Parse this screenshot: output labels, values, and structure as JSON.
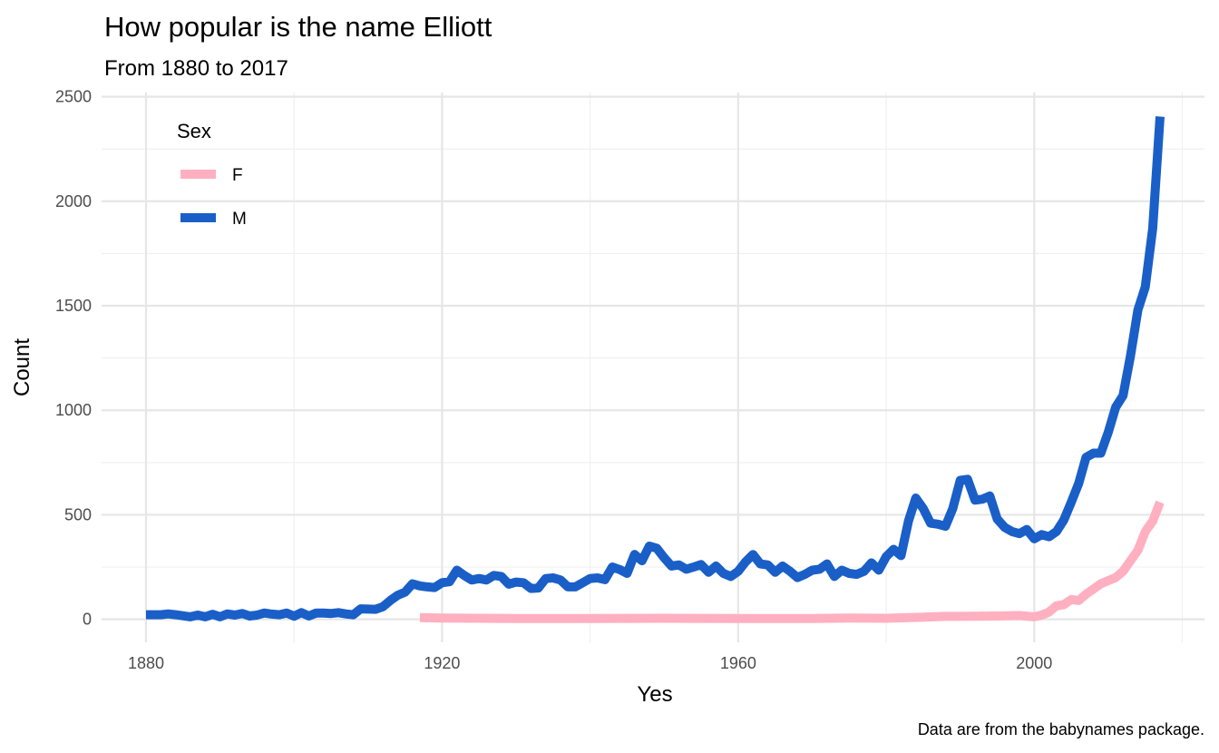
{
  "chart_data": {
    "type": "line",
    "title": "How popular is the name Elliott",
    "subtitle": "From 1880 to 2017",
    "xlabel": "Yes",
    "ylabel": "Count",
    "caption": "Data are from the babynames package.",
    "xlim": [
      1874,
      2023
    ],
    "ylim": [
      -110,
      2520
    ],
    "x_ticks": [
      1880,
      1920,
      1960,
      2000
    ],
    "y_ticks": [
      0,
      500,
      1000,
      1500,
      2000,
      2500
    ],
    "grid": true,
    "legend": {
      "title": "Sex",
      "position": "top-left"
    },
    "series": [
      {
        "name": "F",
        "color": "#ffb0c0",
        "points": [
          [
            1917,
            8
          ],
          [
            1920,
            6
          ],
          [
            1930,
            4
          ],
          [
            1940,
            4
          ],
          [
            1950,
            5
          ],
          [
            1960,
            4
          ],
          [
            1970,
            4
          ],
          [
            1975,
            6
          ],
          [
            1980,
            5
          ],
          [
            1983,
            8
          ],
          [
            1985,
            10
          ],
          [
            1988,
            14
          ],
          [
            1990,
            14
          ],
          [
            1995,
            16
          ],
          [
            1998,
            18
          ],
          [
            2000,
            12
          ],
          [
            2001,
            20
          ],
          [
            2002,
            35
          ],
          [
            2003,
            65
          ],
          [
            2004,
            70
          ],
          [
            2005,
            95
          ],
          [
            2006,
            90
          ],
          [
            2007,
            120
          ],
          [
            2008,
            145
          ],
          [
            2009,
            170
          ],
          [
            2010,
            185
          ],
          [
            2011,
            200
          ],
          [
            2012,
            230
          ],
          [
            2013,
            280
          ],
          [
            2014,
            330
          ],
          [
            2015,
            420
          ],
          [
            2016,
            470
          ],
          [
            2017,
            560
          ]
        ]
      },
      {
        "name": "M",
        "color": "#1a5fc7",
        "points": [
          [
            1880,
            22
          ],
          [
            1882,
            22
          ],
          [
            1883,
            26
          ],
          [
            1884,
            22
          ],
          [
            1886,
            12
          ],
          [
            1887,
            20
          ],
          [
            1888,
            12
          ],
          [
            1889,
            24
          ],
          [
            1890,
            12
          ],
          [
            1891,
            26
          ],
          [
            1892,
            20
          ],
          [
            1893,
            28
          ],
          [
            1894,
            16
          ],
          [
            1895,
            20
          ],
          [
            1896,
            30
          ],
          [
            1897,
            25
          ],
          [
            1898,
            22
          ],
          [
            1899,
            30
          ],
          [
            1900,
            15
          ],
          [
            1901,
            32
          ],
          [
            1902,
            16
          ],
          [
            1903,
            30
          ],
          [
            1904,
            30
          ],
          [
            1905,
            28
          ],
          [
            1906,
            32
          ],
          [
            1907,
            26
          ],
          [
            1908,
            22
          ],
          [
            1909,
            50
          ],
          [
            1911,
            48
          ],
          [
            1912,
            60
          ],
          [
            1913,
            90
          ],
          [
            1914,
            115
          ],
          [
            1915,
            130
          ],
          [
            1916,
            170
          ],
          [
            1917,
            160
          ],
          [
            1918,
            155
          ],
          [
            1919,
            152
          ],
          [
            1920,
            175
          ],
          [
            1921,
            180
          ],
          [
            1922,
            235
          ],
          [
            1923,
            210
          ],
          [
            1924,
            188
          ],
          [
            1925,
            195
          ],
          [
            1926,
            188
          ],
          [
            1927,
            210
          ],
          [
            1928,
            205
          ],
          [
            1929,
            168
          ],
          [
            1930,
            178
          ],
          [
            1931,
            175
          ],
          [
            1932,
            148
          ],
          [
            1933,
            150
          ],
          [
            1934,
            195
          ],
          [
            1935,
            198
          ],
          [
            1936,
            188
          ],
          [
            1937,
            155
          ],
          [
            1938,
            155
          ],
          [
            1939,
            175
          ],
          [
            1940,
            195
          ],
          [
            1941,
            198
          ],
          [
            1942,
            190
          ],
          [
            1943,
            250
          ],
          [
            1944,
            238
          ],
          [
            1945,
            220
          ],
          [
            1946,
            310
          ],
          [
            1947,
            280
          ],
          [
            1948,
            350
          ],
          [
            1949,
            340
          ],
          [
            1950,
            295
          ],
          [
            1951,
            255
          ],
          [
            1952,
            260
          ],
          [
            1953,
            240
          ],
          [
            1954,
            250
          ],
          [
            1955,
            262
          ],
          [
            1956,
            225
          ],
          [
            1957,
            255
          ],
          [
            1958,
            220
          ],
          [
            1959,
            205
          ],
          [
            1960,
            230
          ],
          [
            1961,
            275
          ],
          [
            1962,
            310
          ],
          [
            1963,
            265
          ],
          [
            1964,
            260
          ],
          [
            1965,
            225
          ],
          [
            1966,
            255
          ],
          [
            1967,
            230
          ],
          [
            1968,
            200
          ],
          [
            1969,
            215
          ],
          [
            1970,
            235
          ],
          [
            1971,
            240
          ],
          [
            1972,
            265
          ],
          [
            1973,
            205
          ],
          [
            1974,
            235
          ],
          [
            1975,
            220
          ],
          [
            1976,
            215
          ],
          [
            1977,
            230
          ],
          [
            1978,
            270
          ],
          [
            1979,
            235
          ],
          [
            1980,
            300
          ],
          [
            1981,
            335
          ],
          [
            1982,
            305
          ],
          [
            1983,
            470
          ],
          [
            1984,
            580
          ],
          [
            1985,
            530
          ],
          [
            1986,
            460
          ],
          [
            1987,
            455
          ],
          [
            1988,
            445
          ],
          [
            1989,
            530
          ],
          [
            1990,
            665
          ],
          [
            1991,
            670
          ],
          [
            1992,
            570
          ],
          [
            1993,
            575
          ],
          [
            1994,
            590
          ],
          [
            1995,
            480
          ],
          [
            1996,
            440
          ],
          [
            1997,
            420
          ],
          [
            1998,
            410
          ],
          [
            1999,
            430
          ],
          [
            2000,
            385
          ],
          [
            2001,
            405
          ],
          [
            2002,
            395
          ],
          [
            2003,
            420
          ],
          [
            2004,
            475
          ],
          [
            2005,
            560
          ],
          [
            2006,
            650
          ],
          [
            2007,
            775
          ],
          [
            2008,
            795
          ],
          [
            2009,
            795
          ],
          [
            2010,
            895
          ],
          [
            2011,
            1015
          ],
          [
            2012,
            1070
          ],
          [
            2013,
            1260
          ],
          [
            2014,
            1480
          ],
          [
            2015,
            1590
          ],
          [
            2016,
            1870
          ],
          [
            2017,
            2405
          ]
        ]
      }
    ]
  }
}
